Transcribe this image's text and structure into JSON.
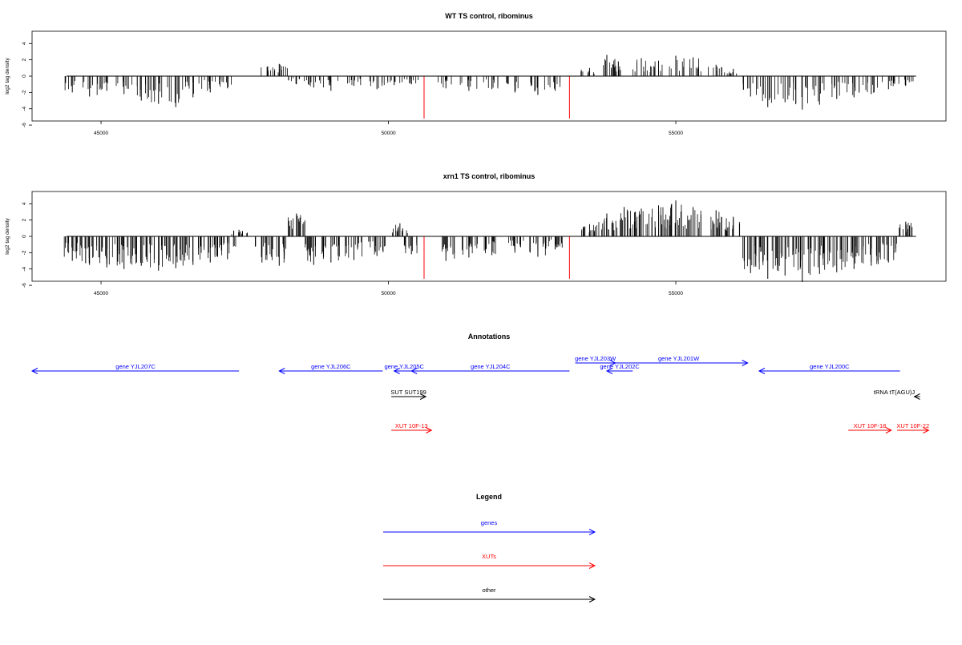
{
  "chart_data": [
    {
      "type": "bar",
      "title": "WT TS control, ribominus",
      "ylabel": "log2 tag density",
      "xlim": [
        43800,
        59700
      ],
      "ylim": [
        -5.5,
        5.5
      ],
      "xticks": [
        "45000",
        "50000",
        "55000"
      ],
      "yticks": [
        "4",
        "2",
        "0",
        "-2",
        "-4",
        "-6"
      ],
      "marker_lines": [
        50620,
        53150
      ],
      "series": [
        {
          "values": [
            [
              44500,
              -2.0
            ],
            [
              44800,
              -2.5
            ],
            [
              45100,
              -1.8
            ],
            [
              45400,
              -2.2
            ],
            [
              45700,
              -3.0
            ],
            [
              46000,
              -3.4
            ],
            [
              46300,
              -3.8
            ],
            [
              46600,
              -2.6
            ],
            [
              46900,
              -2.0
            ],
            [
              47200,
              -1.5
            ],
            [
              47900,
              1.2
            ],
            [
              48100,
              1.5
            ],
            [
              48400,
              -1.0
            ],
            [
              48700,
              -1.4
            ],
            [
              49000,
              -1.8
            ],
            [
              49400,
              -1.2
            ],
            [
              49800,
              -1.6
            ],
            [
              50100,
              -1.1
            ],
            [
              50400,
              -1.0
            ],
            [
              51000,
              -1.5
            ],
            [
              51400,
              -1.8
            ],
            [
              51800,
              -1.6
            ],
            [
              52200,
              -2.0
            ],
            [
              52600,
              -2.3
            ],
            [
              52900,
              -1.8
            ],
            [
              53500,
              1.0
            ],
            [
              53800,
              2.6
            ],
            [
              54000,
              1.8
            ],
            [
              54400,
              2.2
            ],
            [
              54700,
              1.9
            ],
            [
              55000,
              2.5
            ],
            [
              55300,
              2.3
            ],
            [
              55700,
              1.4
            ],
            [
              56000,
              0.9
            ],
            [
              56300,
              -2.5
            ],
            [
              56600,
              -3.8
            ],
            [
              56900,
              -3.2
            ],
            [
              57200,
              -4.1
            ],
            [
              57500,
              -3.5
            ],
            [
              57800,
              -2.8
            ],
            [
              58100,
              -2.6
            ],
            [
              58400,
              -2.2
            ],
            [
              58700,
              -1.6
            ],
            [
              59000,
              -1.2
            ]
          ]
        },
        {
          "name": "",
          "color": "#ff0000",
          "values": [
            [
              50620,
              -5.2
            ],
            [
              53150,
              -5.2
            ]
          ]
        }
      ]
    },
    {
      "type": "bar",
      "title": "xrn1 TS control, ribominus",
      "ylabel": "log2 tag density",
      "xlim": [
        43800,
        59700
      ],
      "ylim": [
        -5.5,
        5.5
      ],
      "xticks": [
        "45000",
        "50000",
        "55000"
      ],
      "yticks": [
        "4",
        "2",
        "0",
        "-2",
        "-4",
        "-6"
      ],
      "marker_lines": [
        50620,
        53150
      ],
      "series": [
        {
          "values": [
            [
              44500,
              -3.0
            ],
            [
              44800,
              -3.5
            ],
            [
              45100,
              -3.8
            ],
            [
              45400,
              -4.0
            ],
            [
              45700,
              -3.6
            ],
            [
              46000,
              -4.2
            ],
            [
              46300,
              -3.9
            ],
            [
              46600,
              -3.5
            ],
            [
              46900,
              -3.2
            ],
            [
              47200,
              -2.8
            ],
            [
              47400,
              0.8
            ],
            [
              47800,
              -3.2
            ],
            [
              48100,
              -3.6
            ],
            [
              48400,
              2.8
            ],
            [
              48700,
              -3.5
            ],
            [
              49000,
              -3.2
            ],
            [
              49400,
              -2.9
            ],
            [
              49800,
              -2.4
            ],
            [
              50200,
              1.6
            ],
            [
              50400,
              -2.2
            ],
            [
              51000,
              -3.0
            ],
            [
              51400,
              -2.6
            ],
            [
              51800,
              -2.3
            ],
            [
              52200,
              -2.0
            ],
            [
              52600,
              -2.5
            ],
            [
              52900,
              -1.6
            ],
            [
              53500,
              1.5
            ],
            [
              53800,
              2.8
            ],
            [
              54100,
              3.6
            ],
            [
              54400,
              3.4
            ],
            [
              54700,
              3.8
            ],
            [
              55000,
              4.4
            ],
            [
              55300,
              3.6
            ],
            [
              55700,
              3.2
            ],
            [
              56000,
              2.4
            ],
            [
              56300,
              -4.5
            ],
            [
              56600,
              -5.2
            ],
            [
              56900,
              -4.8
            ],
            [
              57200,
              -5.6
            ],
            [
              57500,
              -4.6
            ],
            [
              57800,
              -4.4
            ],
            [
              58100,
              -4.0
            ],
            [
              58400,
              -3.6
            ],
            [
              58700,
              -3.2
            ],
            [
              59000,
              1.8
            ]
          ]
        },
        {
          "name": "",
          "color": "#ff0000",
          "values": [
            [
              50620,
              -5.2
            ],
            [
              53150,
              -5.2
            ]
          ]
        }
      ]
    }
  ],
  "annotations": {
    "title": "Annotations",
    "features": [
      {
        "label": "gene YJL207C",
        "type": "genes",
        "strand": "-",
        "start": 43800,
        "end": 47400,
        "row": 2
      },
      {
        "label": "gene YJL206C",
        "type": "genes",
        "strand": "-",
        "start": 48100,
        "end": 49900,
        "row": 2
      },
      {
        "label": "gene YJL205C",
        "type": "genes",
        "strand": "-",
        "start": 50100,
        "end": 50450,
        "row": 2
      },
      {
        "label": "gene YJL204C",
        "type": "genes",
        "strand": "-",
        "start": 50400,
        "end": 53150,
        "row": 2
      },
      {
        "label": "gene YJL203W",
        "type": "genes",
        "strand": "+",
        "start": 53250,
        "end": 53950,
        "row": 1
      },
      {
        "label": "gene YJL202C",
        "type": "genes",
        "strand": "-",
        "start": 53800,
        "end": 54250,
        "row": 2
      },
      {
        "label": "gene YJL201W",
        "type": "genes",
        "strand": "+",
        "start": 53850,
        "end": 56250,
        "row": 1
      },
      {
        "label": "gene YJL200C",
        "type": "genes",
        "strand": "-",
        "start": 56450,
        "end": 58900,
        "row": 2
      },
      {
        "label": "SUT SUT199",
        "type": "other",
        "strand": "+",
        "start": 50050,
        "end": 50650,
        "row": 3
      },
      {
        "label": "tRNA tT(AGU)J",
        "type": "other",
        "strand": "-",
        "start": 59150,
        "end": 59250,
        "row": 3
      },
      {
        "label": "XUT 10F-13",
        "type": "XUTs",
        "strand": "+",
        "start": 50050,
        "end": 50750,
        "row": 4
      },
      {
        "label": "XUT 10F-18",
        "type": "XUTs",
        "strand": "+",
        "start": 58000,
        "end": 58750,
        "row": 4
      },
      {
        "label": "XUT 10F-22",
        "type": "XUTs",
        "strand": "+",
        "start": 58850,
        "end": 59400,
        "row": 4
      }
    ]
  },
  "legend": {
    "title": "Legend",
    "items": [
      {
        "label": "genes",
        "color": "#0000ff"
      },
      {
        "label": "XUTs",
        "color": "#ff0000"
      },
      {
        "label": "other",
        "color": "#000000"
      }
    ]
  }
}
